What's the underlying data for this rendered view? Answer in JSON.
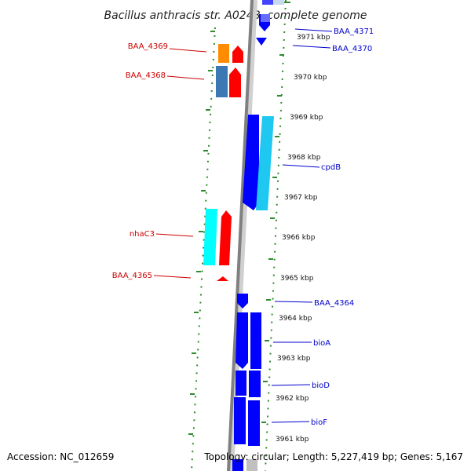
{
  "title": "Bacillus anthracis str. A0248, complete genome",
  "footer": {
    "accession": "Accession: NC_012659",
    "topology": "Topology: circular; Length: 5,227,419 bp; Genes: 5,167"
  },
  "scale_labels": [
    "3971 kbp",
    "3970 kbp",
    "3969 kbp",
    "3968 kbp",
    "3967 kbp",
    "3966 kbp",
    "3965 kbp",
    "3964 kbp",
    "3963 kbp",
    "3962 kbp",
    "3961 kbp"
  ],
  "genes_forward": [
    "BAA_4371",
    "BAA_4370",
    "cpdB",
    "BAA_4364",
    "bioA",
    "bioD",
    "bioF"
  ],
  "genes_reverse": [
    "BAA_4369",
    "BAA_4368",
    "nhaC3",
    "BAA_4365"
  ],
  "colors": {
    "forward_strand": "#0000ff",
    "forward_highlight": "#1ec8f0",
    "reverse_strand": "#ff0000",
    "reverse_highlight": "#00ffff",
    "steelblue_gene": "#3c78b4",
    "orange_gene": "#ff8c00",
    "label_forward": "#0000cc",
    "label_reverse": "#cc0000",
    "dotted_rule": "#2e8b2e",
    "backbone": "#808080"
  }
}
